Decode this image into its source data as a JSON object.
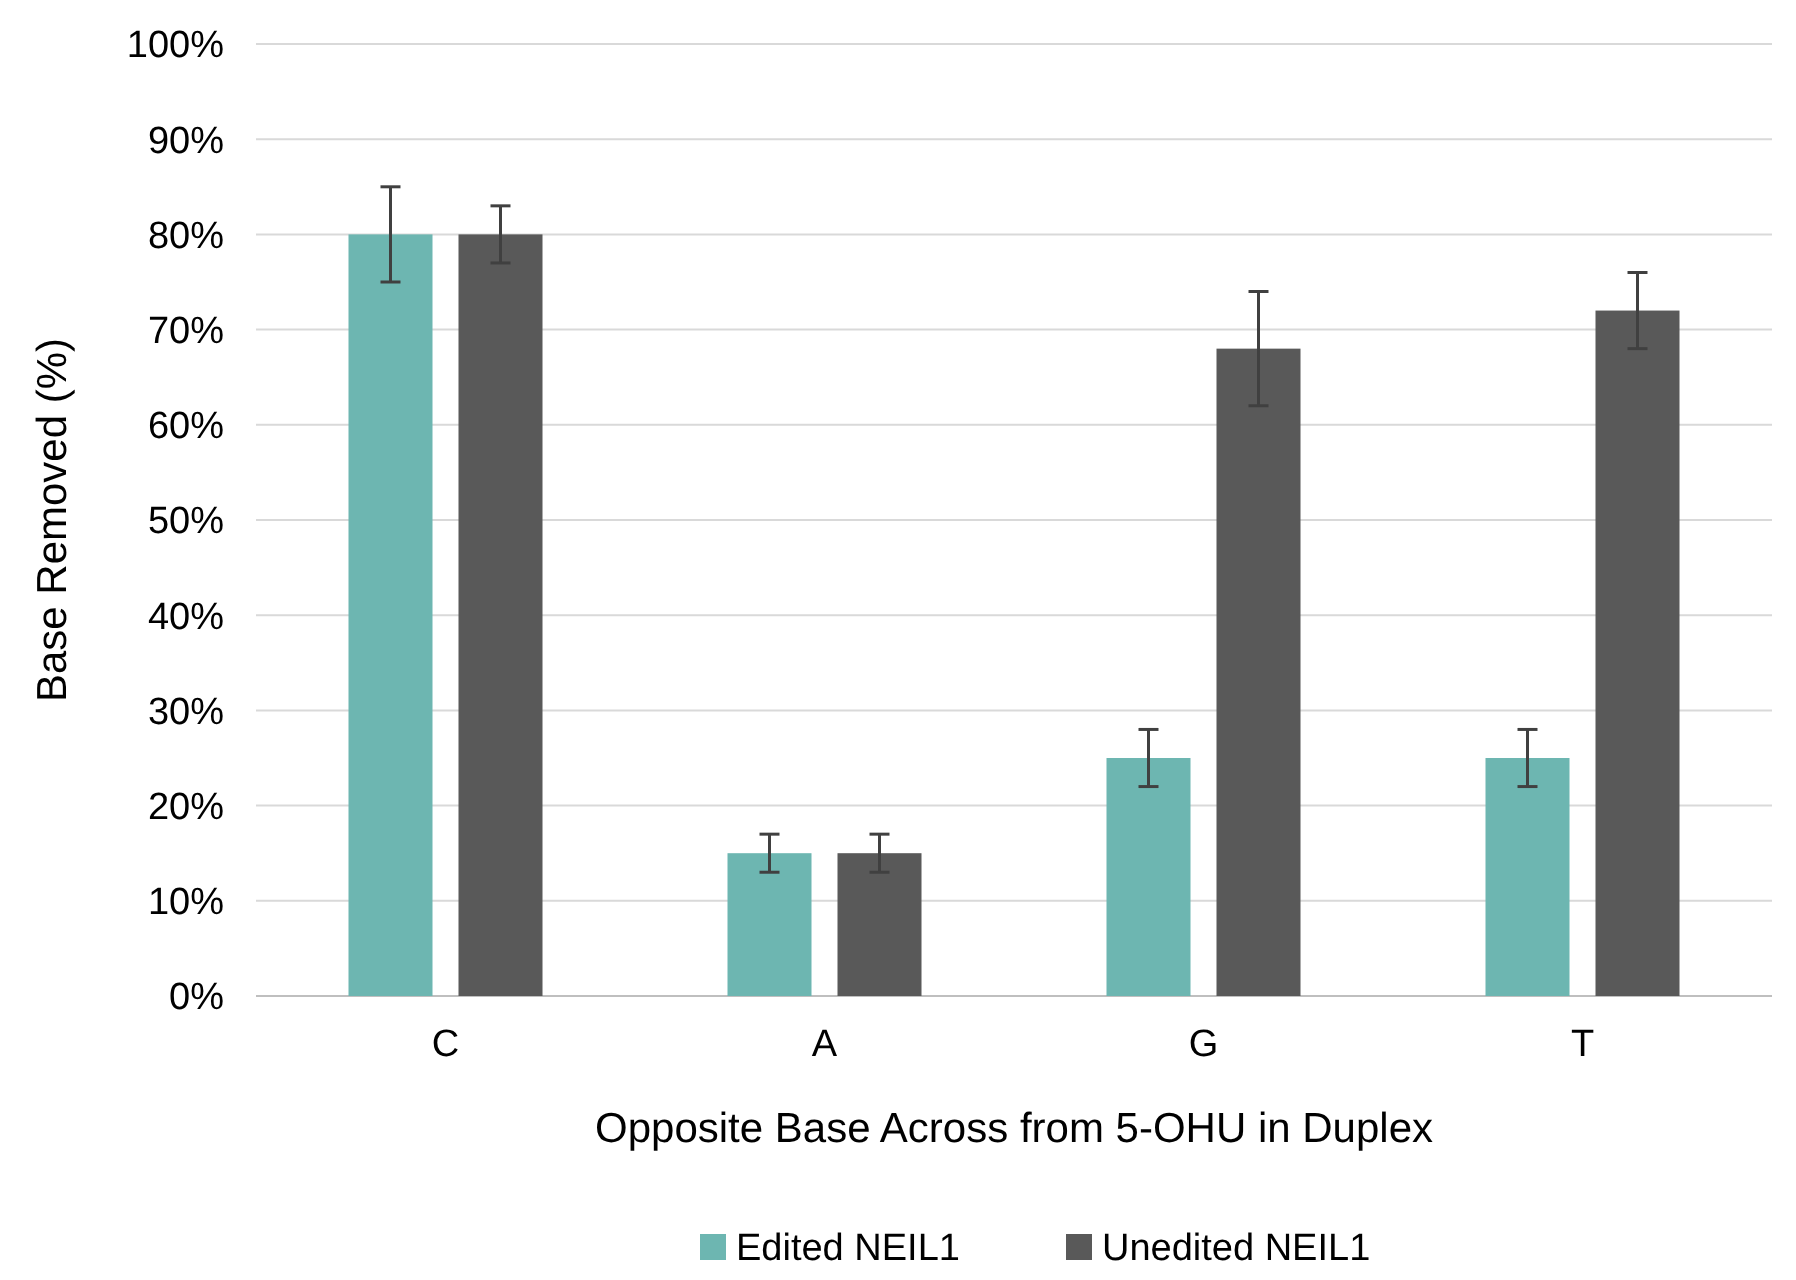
{
  "chart_data": {
    "type": "bar",
    "xlabel": "Opposite Base Across from 5-OHU in Duplex",
    "ylabel": "Base Removed (%)",
    "categories": [
      "C",
      "A",
      "G",
      "T"
    ],
    "series": [
      {
        "name": "Edited NEIL1",
        "color": "#6db6b1",
        "values": [
          80,
          15,
          25,
          25
        ],
        "errors": [
          5,
          2,
          3,
          3
        ]
      },
      {
        "name": "Unedited NEIL1",
        "color": "#595959",
        "values": [
          80,
          15,
          68,
          72
        ],
        "errors": [
          3,
          2,
          6,
          4
        ]
      }
    ],
    "ylim": [
      0,
      100
    ],
    "yticks": [
      {
        "value": 0,
        "label": "0%"
      },
      {
        "value": 10,
        "label": "10%"
      },
      {
        "value": 20,
        "label": "20%"
      },
      {
        "value": 30,
        "label": "30%"
      },
      {
        "value": 40,
        "label": "40%"
      },
      {
        "value": 50,
        "label": "50%"
      },
      {
        "value": 60,
        "label": "60%"
      },
      {
        "value": 70,
        "label": "70%"
      },
      {
        "value": 80,
        "label": "80%"
      },
      {
        "value": 90,
        "label": "90%"
      },
      {
        "value": 100,
        "label": "100%"
      }
    ],
    "grid": "y",
    "legend": "bottom"
  }
}
